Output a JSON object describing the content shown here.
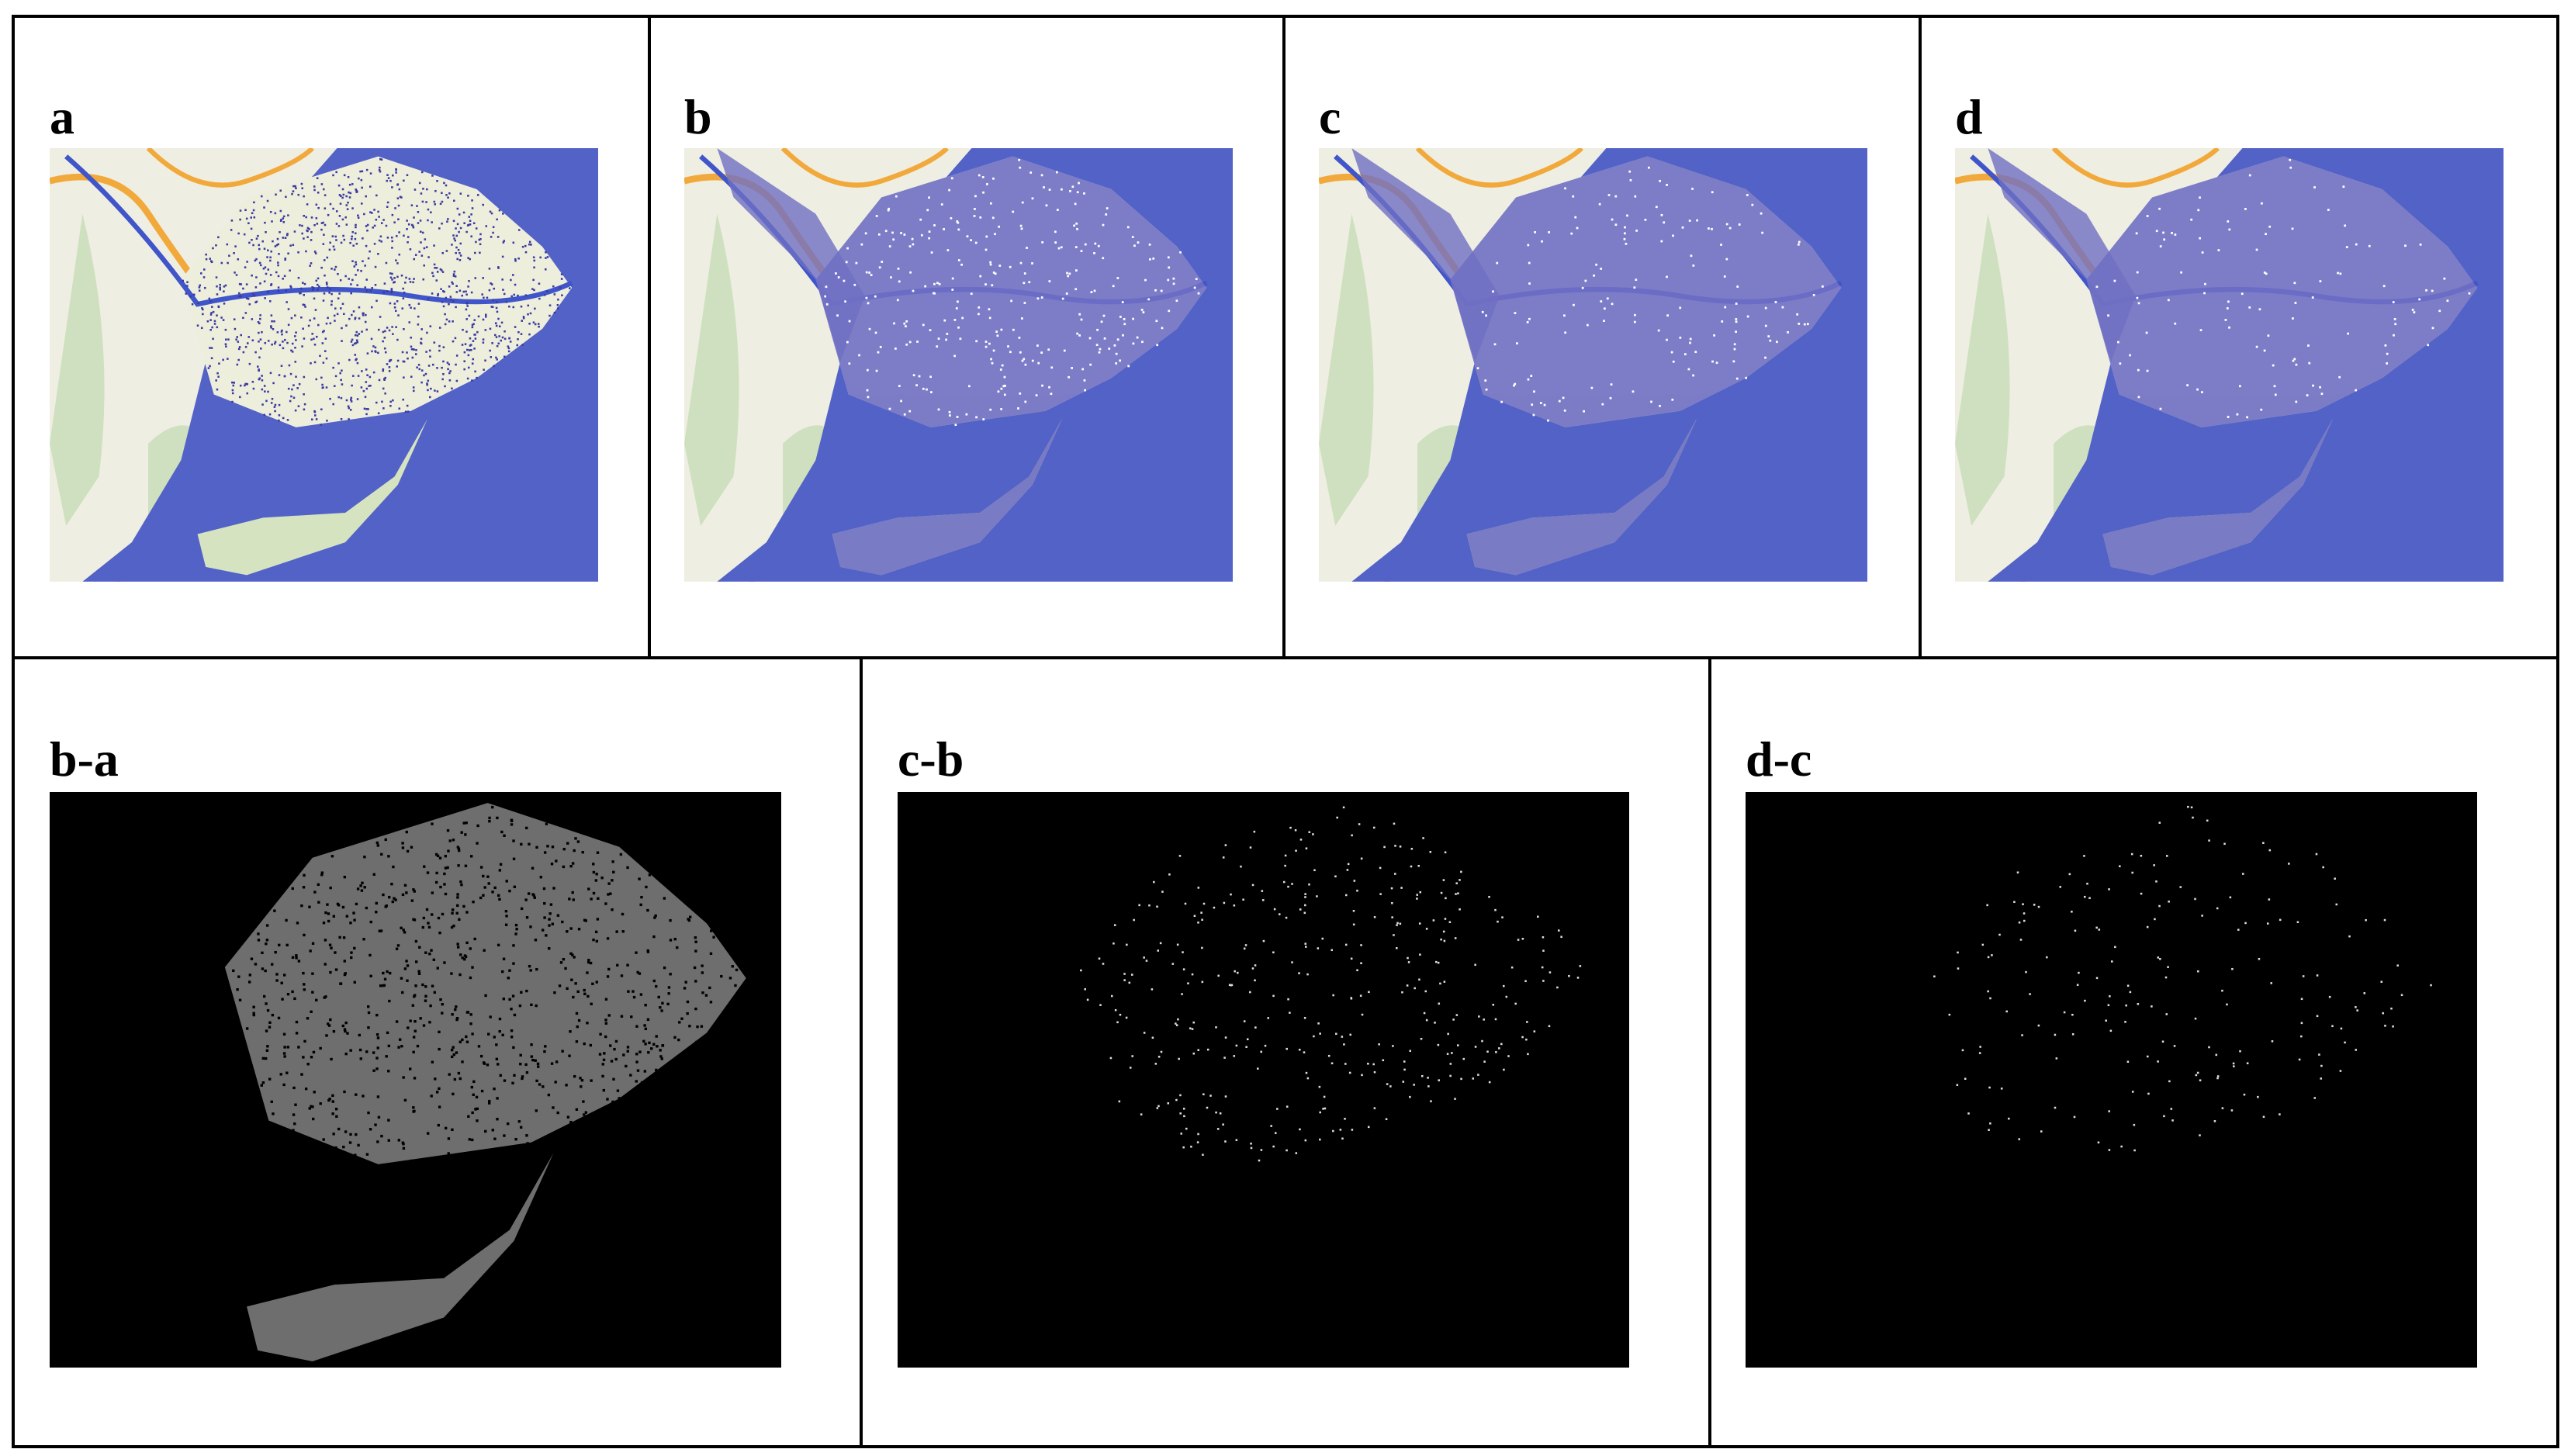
{
  "panels": [
    {
      "label": "a"
    },
    {
      "label": "b"
    },
    {
      "label": "c"
    },
    {
      "label": "d"
    }
  ],
  "differences": [
    {
      "label": "b-a"
    },
    {
      "label": "c-b"
    },
    {
      "label": "d-c"
    }
  ]
}
